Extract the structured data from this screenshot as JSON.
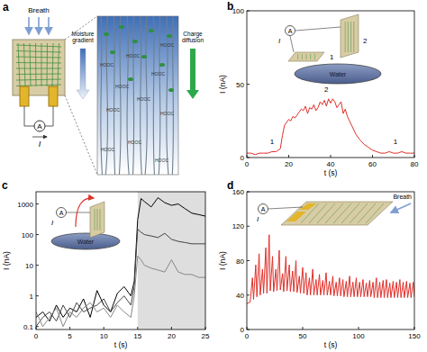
{
  "diagram": {
    "label": "a",
    "breath": "Breath",
    "moisture": "Moisture gradient",
    "charge": "Charge diffusion",
    "meter": "A",
    "current": "I",
    "fiber_label": "HOOC"
  },
  "chart_data": [
    {
      "type": "line",
      "title": "b",
      "x_label": "t (s)",
      "y_label": "I (nA)",
      "x": [
        0,
        2,
        4,
        6,
        8,
        10,
        12,
        14,
        16,
        17,
        18,
        19,
        20,
        21,
        22,
        23,
        24,
        25,
        26,
        27,
        28,
        29,
        30,
        31,
        32,
        33,
        34,
        35,
        36,
        37,
        38,
        39,
        40,
        41,
        42,
        43,
        44,
        45,
        46,
        47,
        48,
        49,
        50,
        52,
        54,
        56,
        58,
        60,
        62,
        64,
        66,
        68,
        70,
        72,
        74,
        76,
        78,
        80
      ],
      "series": [
        {
          "color": "#e0302a",
          "values": [
            3,
            3,
            2,
            3,
            3,
            3,
            4,
            4,
            6,
            15,
            22,
            24,
            26,
            25,
            28,
            27,
            29,
            31,
            33,
            32,
            35,
            30,
            34,
            33,
            36,
            32,
            34,
            38,
            36,
            39,
            35,
            40,
            37,
            40,
            38,
            34,
            36,
            38,
            30,
            33,
            28,
            25,
            22,
            16,
            12,
            9,
            7,
            5,
            4,
            3,
            3,
            4,
            3,
            3,
            4,
            3,
            3,
            3
          ]
        }
      ],
      "xlim": [
        0,
        80
      ],
      "ylim": [
        0,
        100
      ],
      "xticks": [
        0,
        20,
        40,
        60,
        80
      ],
      "yticks": [
        0,
        50,
        100
      ],
      "annotations": [
        {
          "text": "1",
          "x": 12,
          "y": 9
        },
        {
          "text": "2",
          "x": 38,
          "y": 45
        },
        {
          "text": "1",
          "x": 71,
          "y": 9
        }
      ],
      "inset": {
        "labels": [
          "1",
          "2"
        ],
        "meter": "A",
        "current": "I",
        "liquid": "Water"
      }
    },
    {
      "type": "line",
      "title": "c",
      "x_label": "t (s)",
      "y_label": "I (nA)",
      "log": "y",
      "x": [
        0,
        1,
        2,
        3,
        4,
        5,
        6,
        7,
        8,
        9,
        10,
        11,
        12,
        13,
        14,
        14.5,
        15,
        15.5,
        16,
        17,
        18,
        19,
        20,
        21,
        22,
        23,
        24,
        25
      ],
      "series": [
        {
          "color": "#000000",
          "values": [
            0.2,
            0.3,
            0.15,
            0.5,
            0.2,
            0.4,
            0.3,
            0.8,
            0.2,
            1.5,
            0.5,
            0.3,
            1.2,
            2,
            1,
            3,
            300,
            1500,
            1200,
            800,
            1600,
            1100,
            900,
            1000,
            700,
            500,
            450,
            400
          ]
        },
        {
          "color": "#444444",
          "values": [
            0.1,
            0.2,
            0.3,
            0.15,
            0.5,
            0.2,
            0.6,
            0.3,
            0.4,
            0.5,
            0.8,
            0.3,
            0.6,
            1,
            0.5,
            2,
            150,
            120,
            100,
            90,
            80,
            110,
            70,
            60,
            55,
            50,
            50,
            50
          ]
        },
        {
          "color": "#888888",
          "values": [
            0.3,
            0.1,
            0.2,
            0.4,
            0.1,
            0.3,
            0.2,
            0.4,
            0.6,
            0.3,
            0.4,
            0.2,
            0.5,
            0.3,
            0.2,
            1,
            20,
            15,
            10,
            8,
            7,
            6,
            15,
            6,
            5,
            5,
            4,
            4
          ]
        }
      ],
      "xlim": [
        0,
        25
      ],
      "ylim": [
        0.08,
        2500
      ],
      "xticks": [
        0,
        5,
        10,
        15,
        20,
        25
      ],
      "yticks": [
        0.1,
        1,
        10,
        100,
        1000
      ],
      "shaded_x": [
        15,
        25
      ],
      "inset": {
        "meter": "A",
        "current": "I",
        "liquid": "Water"
      }
    },
    {
      "type": "line",
      "title": "d",
      "x_label": "t (s)",
      "y_label": "I (nA)",
      "x": [
        0,
        3,
        5,
        6,
        8,
        9,
        11,
        12,
        14,
        15,
        17,
        18,
        20,
        21,
        23,
        24,
        26,
        27,
        29,
        30,
        32,
        33,
        35,
        36,
        38,
        39,
        41,
        42,
        44,
        45,
        47,
        48,
        50,
        51,
        53,
        54,
        56,
        57,
        59,
        60,
        62,
        63,
        65,
        66,
        68,
        69,
        71,
        72,
        74,
        75,
        77,
        78,
        80,
        81,
        83,
        84,
        86,
        87,
        89,
        90,
        92,
        93,
        95,
        96,
        98,
        99,
        101,
        102,
        104,
        105,
        107,
        108,
        110,
        111,
        113,
        114,
        116,
        117,
        119,
        120,
        122,
        123,
        125,
        126,
        128,
        129,
        131,
        132,
        134,
        135,
        137,
        138,
        140,
        141,
        143,
        144,
        146,
        147,
        149,
        150
      ],
      "series": [
        {
          "color": "#e0302a",
          "values": [
            30,
            32,
            60,
            35,
            75,
            38,
            88,
            40,
            70,
            42,
            95,
            42,
            110,
            45,
            85,
            44,
            70,
            45,
            92,
            46,
            65,
            44,
            85,
            45,
            75,
            44,
            68,
            44,
            80,
            43,
            62,
            42,
            72,
            42,
            66,
            40,
            60,
            40,
            70,
            40,
            58,
            40,
            64,
            40,
            57,
            40,
            66,
            40,
            56,
            40,
            62,
            39,
            55,
            39,
            60,
            39,
            58,
            38,
            56,
            38,
            62,
            38,
            55,
            38,
            60,
            38,
            55,
            38,
            58,
            38,
            54,
            38,
            57,
            38,
            55,
            37,
            60,
            37,
            55,
            37,
            57,
            37,
            58,
            37,
            54,
            37,
            56,
            37,
            55,
            37,
            58,
            37,
            55,
            37,
            56,
            37,
            54,
            37,
            55,
            38
          ]
        }
      ],
      "xlim": [
        0,
        150
      ],
      "ylim": [
        0,
        160
      ],
      "xticks": [
        0,
        50,
        100,
        150
      ],
      "yticks": [
        0,
        40,
        80,
        120,
        160
      ],
      "inset": {
        "meter": "A",
        "current": "I",
        "breath": "Breath"
      }
    }
  ]
}
